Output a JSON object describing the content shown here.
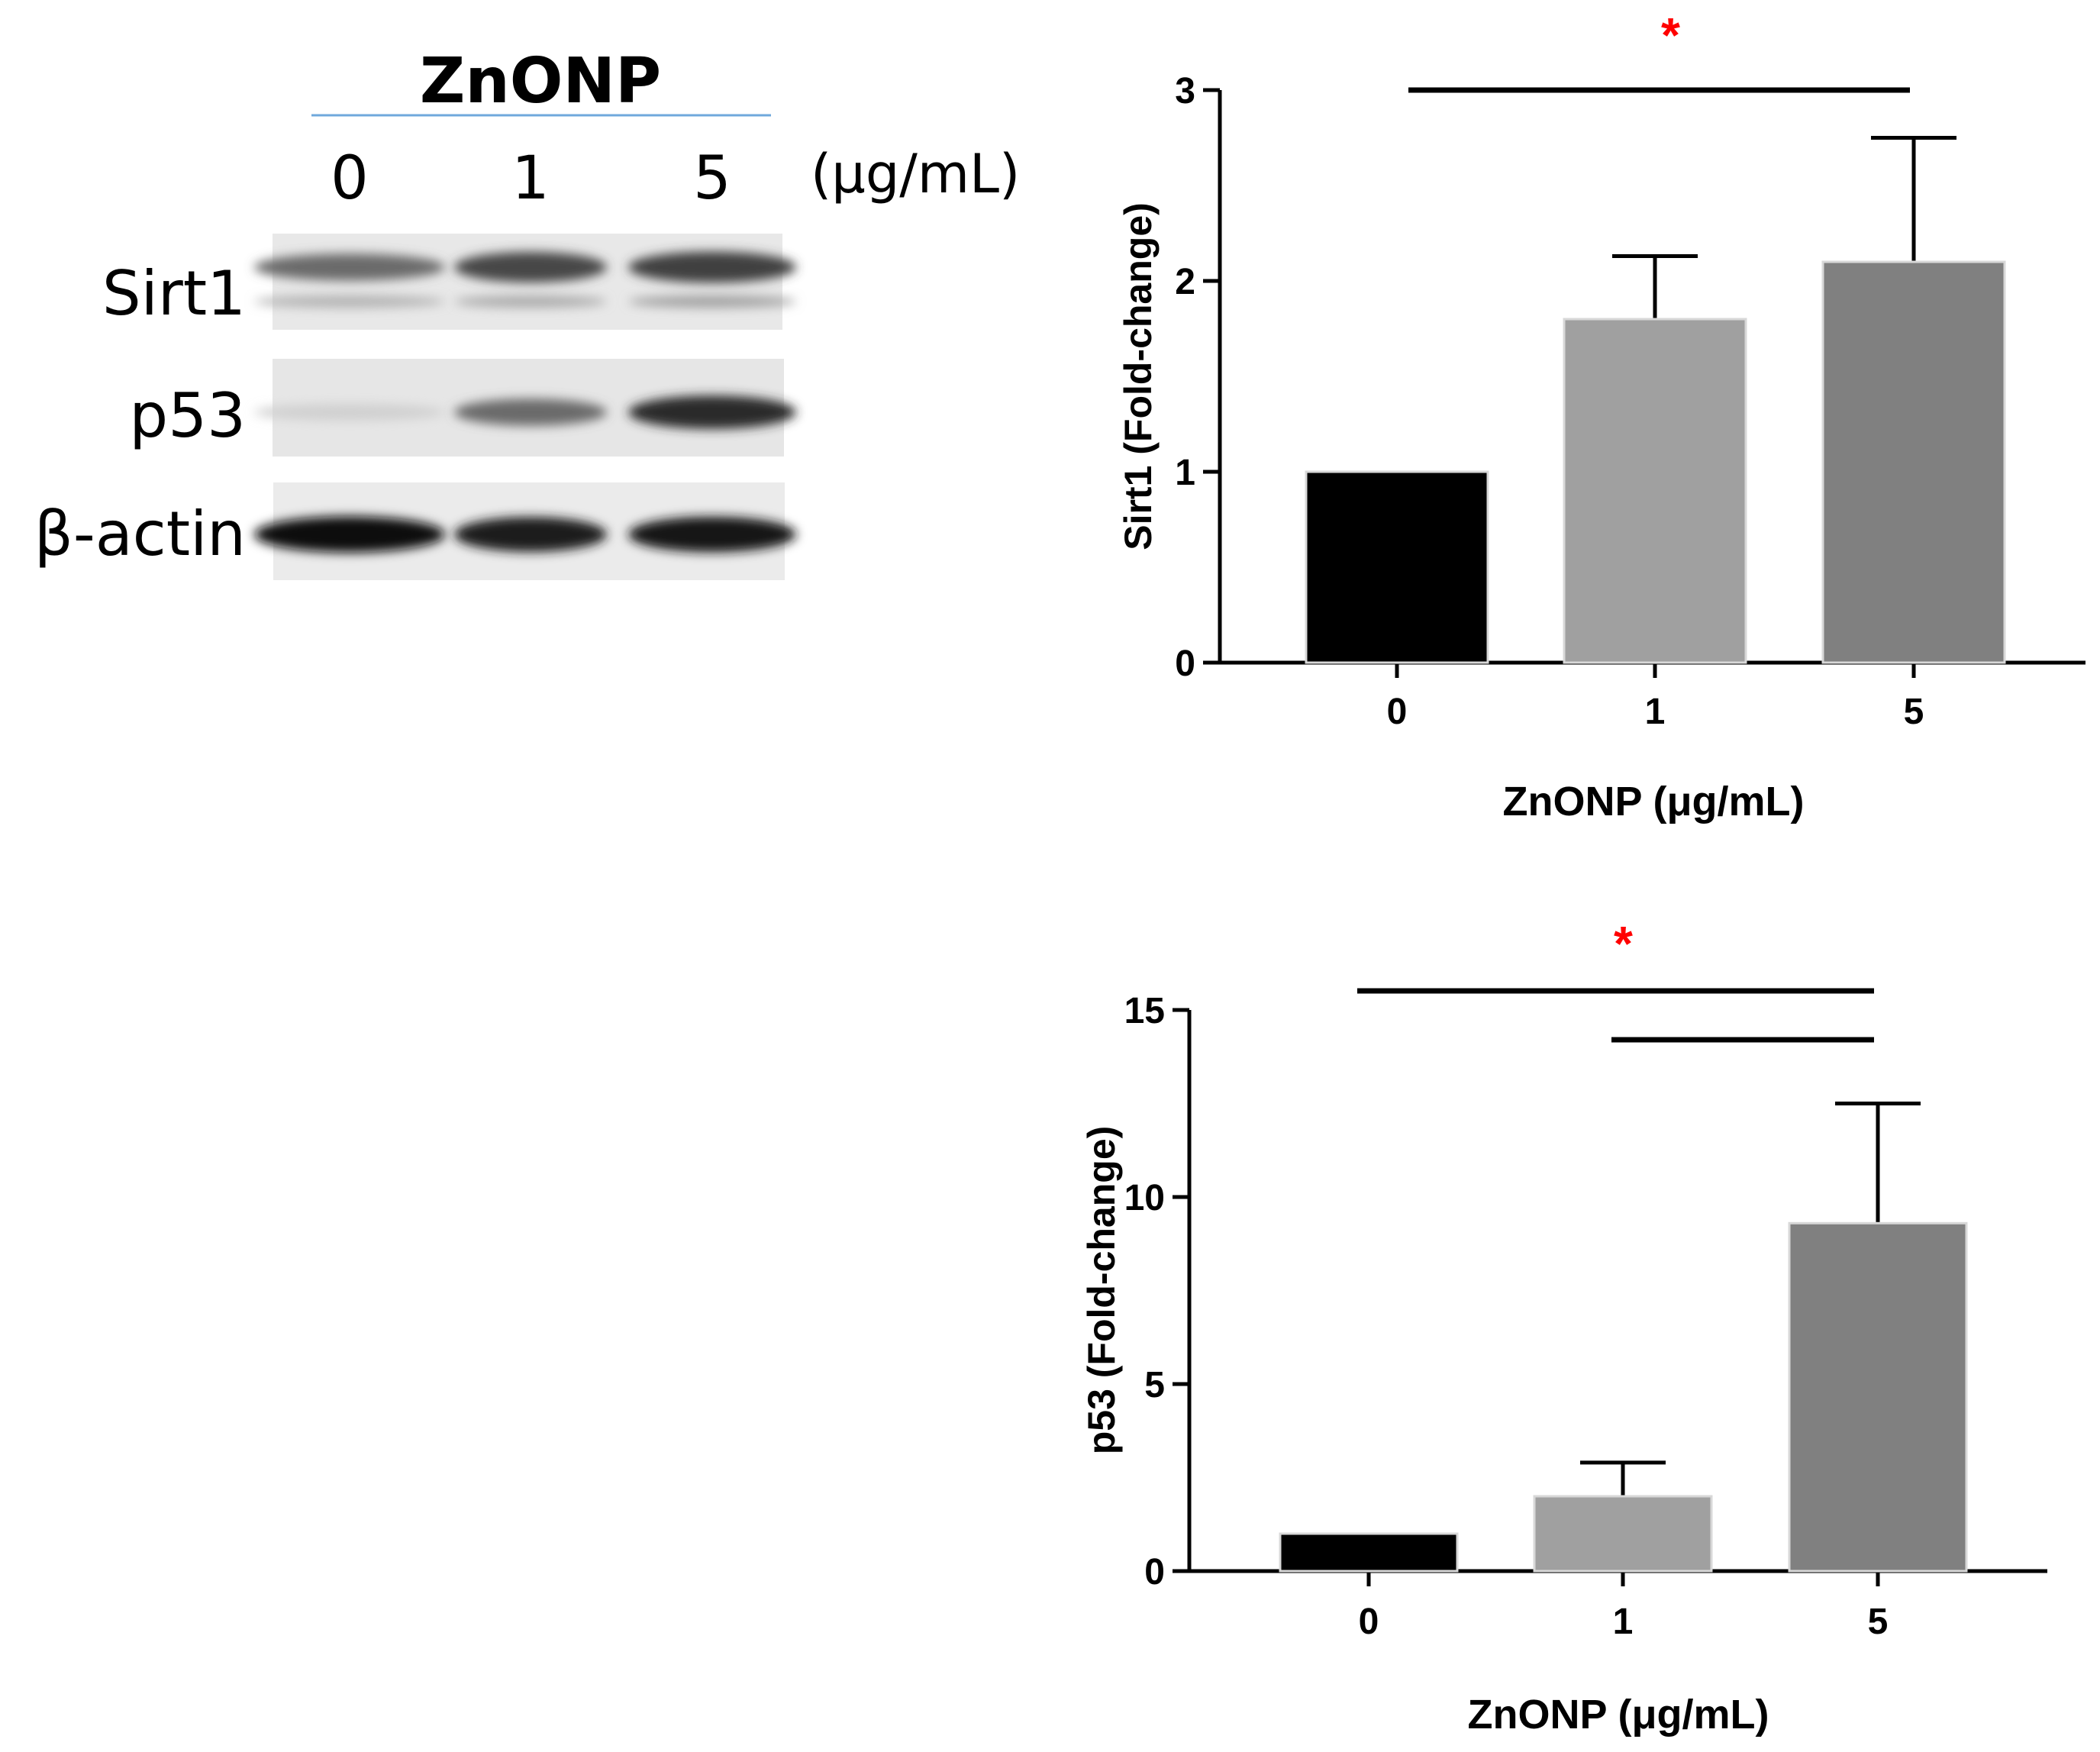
{
  "blot": {
    "treatment": "ZnONP",
    "unit": "(μg/mL)",
    "doses": [
      "0",
      "1",
      "5"
    ],
    "rows": [
      {
        "label": "Sirt1",
        "intensities": [
          0.55,
          0.72,
          0.75
        ],
        "lower_band": [
          0.22,
          0.25,
          0.3
        ]
      },
      {
        "label": "p53",
        "intensities": [
          0.08,
          0.55,
          0.85
        ],
        "lower_band": [
          0,
          0,
          0
        ]
      },
      {
        "label": "β-actin",
        "intensities": [
          0.98,
          0.92,
          0.95
        ],
        "lower_band": [
          0,
          0,
          0
        ]
      }
    ],
    "colors": {
      "header_line": "#6fa8dc",
      "panel_bg": "#e8e8e8"
    }
  },
  "chart_data": [
    {
      "type": "bar",
      "categories": [
        "0",
        "1",
        "5"
      ],
      "values": [
        1.0,
        1.8,
        2.1
      ],
      "errors": [
        0,
        0.33,
        0.65
      ],
      "ylabel": "Sirt1 (Fold-change)",
      "xlabel": "ZnONP (μg/mL)",
      "ylim": [
        0,
        3
      ],
      "yticks": [
        "0",
        "1",
        "2",
        "3"
      ],
      "bar_colors": [
        "#000000",
        "#a0a0a0",
        "#808080"
      ],
      "significance": [
        {
          "from": "0",
          "to": "5",
          "label": "*",
          "color": "#ff0000"
        }
      ]
    },
    {
      "type": "bar",
      "categories": [
        "0",
        "1",
        "5"
      ],
      "values": [
        1.0,
        2.0,
        9.3
      ],
      "errors": [
        0,
        0.9,
        3.2
      ],
      "ylabel": "p53 (Fold-change)",
      "xlabel": "ZnONP (μg/mL)",
      "ylim": [
        0,
        15
      ],
      "yticks": [
        "0",
        "5",
        "10",
        "15"
      ],
      "bar_colors": [
        "#000000",
        "#a0a0a0",
        "#808080"
      ],
      "significance": [
        {
          "from": "0",
          "to": "5",
          "label": "*",
          "color": "#ff0000"
        },
        {
          "from": "1",
          "to": "5",
          "label": "",
          "color": "#ff0000"
        }
      ]
    }
  ]
}
